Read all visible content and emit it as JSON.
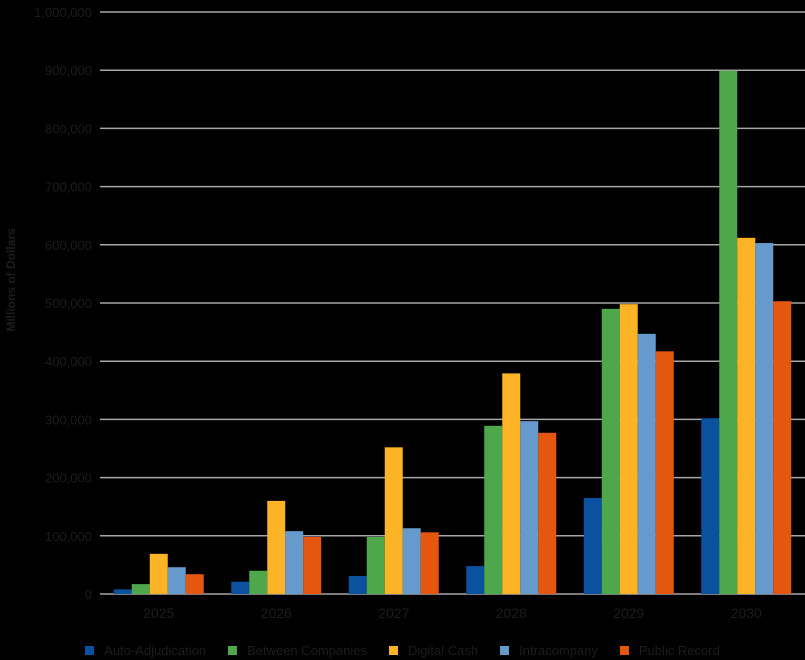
{
  "chart_data": {
    "type": "bar",
    "title": "",
    "xlabel": "",
    "ylabel": "Millions of Dollars",
    "ylim": [
      0,
      1000000
    ],
    "yticks": [
      0,
      100000,
      200000,
      300000,
      400000,
      500000,
      600000,
      700000,
      800000,
      900000,
      1000000
    ],
    "ytick_labels": [
      "0",
      "100,000",
      "200,000",
      "300,000",
      "400,000",
      "500,000",
      "600,000",
      "700,000",
      "800,000",
      "900,000",
      "1,000,000"
    ],
    "grid": true,
    "legend_position": "bottom",
    "categories": [
      "2025",
      "2026",
      "2027",
      "2028",
      "2029",
      "2030"
    ],
    "series": [
      {
        "name": "Auto-Adjudication",
        "color": "#0a52a0",
        "values": [
          8000,
          21000,
          31000,
          48000,
          165000,
          302000
        ]
      },
      {
        "name": "Between Companies",
        "color": "#4ea74b",
        "values": [
          17000,
          40000,
          98000,
          289000,
          490000,
          899000
        ]
      },
      {
        "name": "Digital Cash",
        "color": "#fcb326",
        "values": [
          69000,
          160000,
          252000,
          379000,
          498000,
          612000
        ]
      },
      {
        "name": "Intracompany",
        "color": "#6699cc",
        "values": [
          46000,
          108000,
          113000,
          297000,
          447000,
          603000
        ]
      },
      {
        "name": "Public Record",
        "color": "#e5570f",
        "values": [
          34000,
          98000,
          106000,
          277000,
          417000,
          503000
        ]
      }
    ]
  }
}
